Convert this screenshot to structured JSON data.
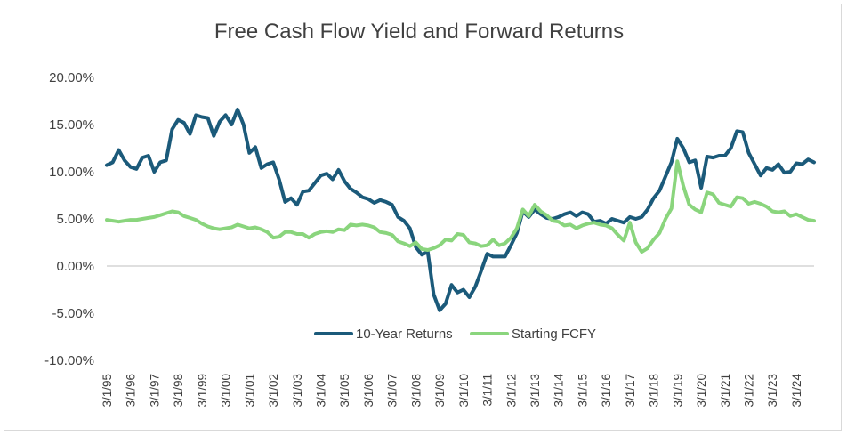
{
  "chart_data": {
    "type": "line",
    "title": "Free Cash Flow Yield and Forward Returns",
    "xlabel": "",
    "ylabel": "",
    "ylim": [
      -0.1,
      0.2
    ],
    "y_ticks": [
      "20.00%",
      "15.00%",
      "10.00%",
      "5.00%",
      "0.00%",
      "-5.00%",
      "-10.00%"
    ],
    "y_tick_values": [
      0.2,
      0.15,
      0.1,
      0.05,
      0.0,
      -0.05,
      -0.1
    ],
    "x_tick_labels": [
      "3/1/95",
      "3/1/96",
      "3/1/97",
      "3/1/98",
      "3/1/99",
      "3/1/00",
      "3/1/01",
      "3/1/02",
      "3/1/03",
      "3/1/04",
      "3/1/05",
      "3/1/06",
      "3/1/07",
      "3/1/08",
      "3/1/09",
      "3/1/10",
      "3/1/11",
      "3/1/12",
      "3/1/13",
      "3/1/14",
      "3/1/15",
      "3/1/16",
      "3/1/17",
      "3/1/18",
      "3/1/19",
      "3/1/20",
      "3/1/21",
      "3/1/22",
      "3/1/23",
      "3/1/24"
    ],
    "xlim": [
      1995.17,
      2024.92
    ],
    "gridlines": false,
    "legend_position": "bottom-center",
    "colors": {
      "returns": "#1b5a7a",
      "fcfy": "#8ad57d",
      "axis": "#bfbfbf"
    },
    "series": [
      {
        "name": "10-Year Returns",
        "color": "#1b5a7a",
        "points": [
          [
            1995.17,
            0.107
          ],
          [
            1995.42,
            0.11
          ],
          [
            1995.67,
            0.123
          ],
          [
            1995.92,
            0.112
          ],
          [
            1996.17,
            0.105
          ],
          [
            1996.42,
            0.103
          ],
          [
            1996.67,
            0.115
          ],
          [
            1996.92,
            0.117
          ],
          [
            1997.17,
            0.1
          ],
          [
            1997.42,
            0.11
          ],
          [
            1997.67,
            0.112
          ],
          [
            1997.92,
            0.145
          ],
          [
            1998.17,
            0.155
          ],
          [
            1998.42,
            0.152
          ],
          [
            1998.67,
            0.14
          ],
          [
            1998.92,
            0.16
          ],
          [
            1999.17,
            0.158
          ],
          [
            1999.42,
            0.157
          ],
          [
            1999.67,
            0.138
          ],
          [
            1999.92,
            0.153
          ],
          [
            2000.17,
            0.16
          ],
          [
            2000.42,
            0.15
          ],
          [
            2000.67,
            0.166
          ],
          [
            2000.92,
            0.15
          ],
          [
            2001.17,
            0.12
          ],
          [
            2001.42,
            0.126
          ],
          [
            2001.67,
            0.104
          ],
          [
            2001.92,
            0.108
          ],
          [
            2002.17,
            0.11
          ],
          [
            2002.42,
            0.092
          ],
          [
            2002.67,
            0.068
          ],
          [
            2002.92,
            0.072
          ],
          [
            2003.17,
            0.065
          ],
          [
            2003.42,
            0.079
          ],
          [
            2003.67,
            0.08
          ],
          [
            2003.92,
            0.088
          ],
          [
            2004.17,
            0.096
          ],
          [
            2004.42,
            0.098
          ],
          [
            2004.67,
            0.092
          ],
          [
            2004.92,
            0.102
          ],
          [
            2005.17,
            0.09
          ],
          [
            2005.42,
            0.082
          ],
          [
            2005.67,
            0.078
          ],
          [
            2005.92,
            0.073
          ],
          [
            2006.17,
            0.071
          ],
          [
            2006.42,
            0.067
          ],
          [
            2006.67,
            0.07
          ],
          [
            2006.92,
            0.068
          ],
          [
            2007.17,
            0.065
          ],
          [
            2007.42,
            0.052
          ],
          [
            2007.67,
            0.048
          ],
          [
            2007.92,
            0.04
          ],
          [
            2008.17,
            0.02
          ],
          [
            2008.42,
            0.012
          ],
          [
            2008.67,
            0.015
          ],
          [
            2008.92,
            -0.03
          ],
          [
            2009.17,
            -0.047
          ],
          [
            2009.42,
            -0.04
          ],
          [
            2009.67,
            -0.02
          ],
          [
            2009.92,
            -0.028
          ],
          [
            2010.17,
            -0.025
          ],
          [
            2010.42,
            -0.033
          ],
          [
            2010.67,
            -0.022
          ],
          [
            2010.92,
            -0.005
          ],
          [
            2011.17,
            0.013
          ],
          [
            2011.42,
            0.01
          ],
          [
            2011.67,
            0.01
          ],
          [
            2011.92,
            0.01
          ],
          [
            2012.17,
            0.022
          ],
          [
            2012.42,
            0.035
          ],
          [
            2012.67,
            0.058
          ],
          [
            2012.92,
            0.052
          ],
          [
            2013.17,
            0.06
          ],
          [
            2013.42,
            0.055
          ],
          [
            2013.67,
            0.051
          ],
          [
            2013.92,
            0.05
          ],
          [
            2014.17,
            0.052
          ],
          [
            2014.42,
            0.055
          ],
          [
            2014.67,
            0.057
          ],
          [
            2014.92,
            0.053
          ],
          [
            2015.17,
            0.057
          ],
          [
            2015.42,
            0.055
          ],
          [
            2015.67,
            0.047
          ],
          [
            2015.92,
            0.048
          ],
          [
            2016.17,
            0.045
          ],
          [
            2016.42,
            0.05
          ],
          [
            2016.67,
            0.048
          ],
          [
            2016.92,
            0.046
          ],
          [
            2017.17,
            0.052
          ],
          [
            2017.42,
            0.05
          ],
          [
            2017.67,
            0.052
          ],
          [
            2017.92,
            0.06
          ],
          [
            2018.17,
            0.072
          ],
          [
            2018.42,
            0.08
          ],
          [
            2018.67,
            0.095
          ],
          [
            2018.92,
            0.11
          ],
          [
            2019.17,
            0.135
          ],
          [
            2019.42,
            0.125
          ],
          [
            2019.67,
            0.11
          ],
          [
            2019.92,
            0.112
          ],
          [
            2020.17,
            0.083
          ],
          [
            2020.42,
            0.116
          ],
          [
            2020.67,
            0.115
          ],
          [
            2020.92,
            0.117
          ],
          [
            2021.17,
            0.117
          ],
          [
            2021.42,
            0.125
          ],
          [
            2021.67,
            0.143
          ],
          [
            2021.92,
            0.142
          ],
          [
            2022.17,
            0.12
          ],
          [
            2022.42,
            0.108
          ],
          [
            2022.67,
            0.096
          ],
          [
            2022.92,
            0.104
          ],
          [
            2023.17,
            0.102
          ],
          [
            2023.42,
            0.108
          ],
          [
            2023.67,
            0.099
          ],
          [
            2023.92,
            0.1
          ],
          [
            2024.17,
            0.109
          ],
          [
            2024.42,
            0.108
          ],
          [
            2024.67,
            0.113
          ],
          [
            2024.92,
            0.11
          ]
        ]
      },
      {
        "name": "Starting FCFY",
        "color": "#8ad57d",
        "points": [
          [
            1995.17,
            0.049
          ],
          [
            1995.42,
            0.048
          ],
          [
            1995.67,
            0.047
          ],
          [
            1995.92,
            0.048
          ],
          [
            1996.17,
            0.049
          ],
          [
            1996.42,
            0.049
          ],
          [
            1996.67,
            0.05
          ],
          [
            1996.92,
            0.051
          ],
          [
            1997.17,
            0.052
          ],
          [
            1997.42,
            0.054
          ],
          [
            1997.67,
            0.056
          ],
          [
            1997.92,
            0.058
          ],
          [
            1998.17,
            0.057
          ],
          [
            1998.42,
            0.053
          ],
          [
            1998.67,
            0.051
          ],
          [
            1998.92,
            0.049
          ],
          [
            1999.17,
            0.045
          ],
          [
            1999.42,
            0.042
          ],
          [
            1999.67,
            0.04
          ],
          [
            1999.92,
            0.039
          ],
          [
            2000.17,
            0.04
          ],
          [
            2000.42,
            0.041
          ],
          [
            2000.67,
            0.044
          ],
          [
            2000.92,
            0.042
          ],
          [
            2001.17,
            0.04
          ],
          [
            2001.42,
            0.041
          ],
          [
            2001.67,
            0.039
          ],
          [
            2001.92,
            0.036
          ],
          [
            2002.17,
            0.03
          ],
          [
            2002.42,
            0.031
          ],
          [
            2002.67,
            0.036
          ],
          [
            2002.92,
            0.036
          ],
          [
            2003.17,
            0.034
          ],
          [
            2003.42,
            0.034
          ],
          [
            2003.67,
            0.03
          ],
          [
            2003.92,
            0.034
          ],
          [
            2004.17,
            0.036
          ],
          [
            2004.42,
            0.037
          ],
          [
            2004.67,
            0.036
          ],
          [
            2004.92,
            0.039
          ],
          [
            2005.17,
            0.038
          ],
          [
            2005.42,
            0.044
          ],
          [
            2005.67,
            0.043
          ],
          [
            2005.92,
            0.044
          ],
          [
            2006.17,
            0.043
          ],
          [
            2006.42,
            0.041
          ],
          [
            2006.67,
            0.036
          ],
          [
            2006.92,
            0.035
          ],
          [
            2007.17,
            0.033
          ],
          [
            2007.42,
            0.026
          ],
          [
            2007.67,
            0.024
          ],
          [
            2007.92,
            0.021
          ],
          [
            2008.17,
            0.025
          ],
          [
            2008.42,
            0.018
          ],
          [
            2008.67,
            0.017
          ],
          [
            2008.92,
            0.019
          ],
          [
            2009.17,
            0.022
          ],
          [
            2009.42,
            0.028
          ],
          [
            2009.67,
            0.027
          ],
          [
            2009.92,
            0.034
          ],
          [
            2010.17,
            0.033
          ],
          [
            2010.42,
            0.025
          ],
          [
            2010.67,
            0.024
          ],
          [
            2010.92,
            0.021
          ],
          [
            2011.17,
            0.022
          ],
          [
            2011.42,
            0.028
          ],
          [
            2011.67,
            0.022
          ],
          [
            2011.92,
            0.024
          ],
          [
            2012.17,
            0.03
          ],
          [
            2012.42,
            0.04
          ],
          [
            2012.67,
            0.06
          ],
          [
            2012.92,
            0.053
          ],
          [
            2013.17,
            0.065
          ],
          [
            2013.42,
            0.058
          ],
          [
            2013.67,
            0.054
          ],
          [
            2013.92,
            0.048
          ],
          [
            2014.17,
            0.047
          ],
          [
            2014.42,
            0.043
          ],
          [
            2014.67,
            0.044
          ],
          [
            2014.92,
            0.04
          ],
          [
            2015.17,
            0.043
          ],
          [
            2015.42,
            0.045
          ],
          [
            2015.67,
            0.046
          ],
          [
            2015.92,
            0.044
          ],
          [
            2016.17,
            0.043
          ],
          [
            2016.42,
            0.04
          ],
          [
            2016.67,
            0.033
          ],
          [
            2016.92,
            0.027
          ],
          [
            2017.17,
            0.046
          ],
          [
            2017.42,
            0.025
          ],
          [
            2017.67,
            0.015
          ],
          [
            2017.92,
            0.019
          ],
          [
            2018.17,
            0.028
          ],
          [
            2018.42,
            0.035
          ],
          [
            2018.67,
            0.05
          ],
          [
            2018.92,
            0.061
          ],
          [
            2019.17,
            0.111
          ],
          [
            2019.42,
            0.085
          ],
          [
            2019.67,
            0.065
          ],
          [
            2019.92,
            0.06
          ],
          [
            2020.17,
            0.057
          ],
          [
            2020.42,
            0.078
          ],
          [
            2020.67,
            0.076
          ],
          [
            2020.92,
            0.067
          ],
          [
            2021.17,
            0.065
          ],
          [
            2021.42,
            0.063
          ],
          [
            2021.67,
            0.073
          ],
          [
            2021.92,
            0.072
          ],
          [
            2022.17,
            0.066
          ],
          [
            2022.42,
            0.068
          ],
          [
            2022.67,
            0.066
          ],
          [
            2022.92,
            0.063
          ],
          [
            2023.17,
            0.058
          ],
          [
            2023.42,
            0.057
          ],
          [
            2023.67,
            0.058
          ],
          [
            2023.92,
            0.053
          ],
          [
            2024.17,
            0.055
          ],
          [
            2024.42,
            0.052
          ],
          [
            2024.67,
            0.049
          ],
          [
            2024.92,
            0.048
          ]
        ]
      }
    ]
  }
}
